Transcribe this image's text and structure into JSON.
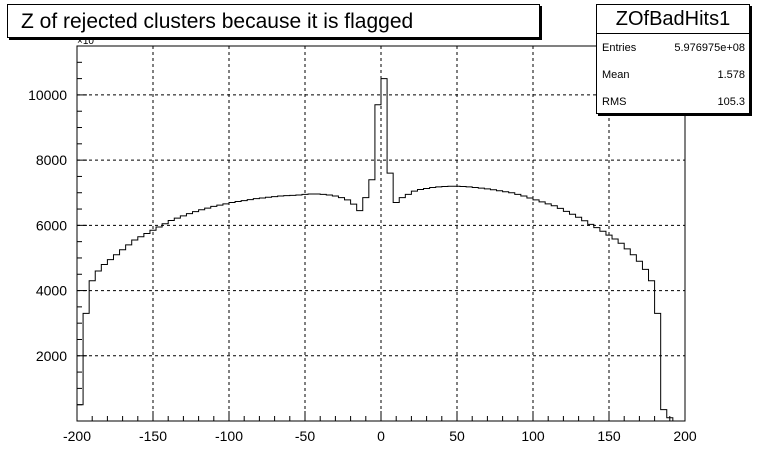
{
  "title": "Z of rejected clusters  because it is flagged",
  "stats": {
    "name": "ZOfBadHits1",
    "rows": [
      {
        "key": "Entries",
        "value": "5.976975e+08"
      },
      {
        "key": "Mean",
        "value": "1.578"
      },
      {
        "key": "RMS",
        "value": "105.3"
      }
    ]
  },
  "y_exponent_label": "×10",
  "chart_data": {
    "type": "histogram",
    "title": "Z of rejected clusters  because it is flagged",
    "xlabel": "",
    "ylabel": "",
    "xlim": [
      -200,
      200
    ],
    "ylim": [
      0,
      11500
    ],
    "x_ticks": [
      -200,
      -150,
      -100,
      -50,
      0,
      50,
      100,
      150,
      200
    ],
    "y_ticks": [
      2000,
      4000,
      6000,
      8000,
      10000
    ],
    "x_tick_labels": [
      "-200",
      "-150",
      "-100",
      "-50",
      "0",
      "50",
      "100",
      "150",
      "200"
    ],
    "y_tick_labels": [
      "2000",
      "4000",
      "6000",
      "8000",
      "10000"
    ],
    "grid": true,
    "bin_edges_start": -200,
    "bin_width": 4,
    "values": [
      500,
      3300,
      4300,
      4600,
      4800,
      4950,
      5100,
      5250,
      5400,
      5550,
      5650,
      5750,
      5850,
      5950,
      6050,
      6150,
      6220,
      6290,
      6360,
      6420,
      6480,
      6530,
      6580,
      6620,
      6660,
      6700,
      6730,
      6760,
      6790,
      6820,
      6840,
      6860,
      6880,
      6900,
      6910,
      6920,
      6930,
      6950,
      6960,
      6960,
      6950,
      6930,
      6900,
      6850,
      6780,
      6650,
      6450,
      6850,
      7400,
      9700,
      10500,
      7600,
      6700,
      6850,
      6950,
      7050,
      7100,
      7130,
      7160,
      7180,
      7190,
      7200,
      7200,
      7190,
      7180,
      7160,
      7140,
      7120,
      7090,
      7060,
      7030,
      7000,
      6950,
      6900,
      6840,
      6780,
      6720,
      6660,
      6600,
      6520,
      6430,
      6340,
      6250,
      6140,
      6030,
      5930,
      5820,
      5700,
      5580,
      5450,
      5280,
      5100,
      4900,
      4650,
      4300,
      3300,
      350,
      100
    ]
  }
}
